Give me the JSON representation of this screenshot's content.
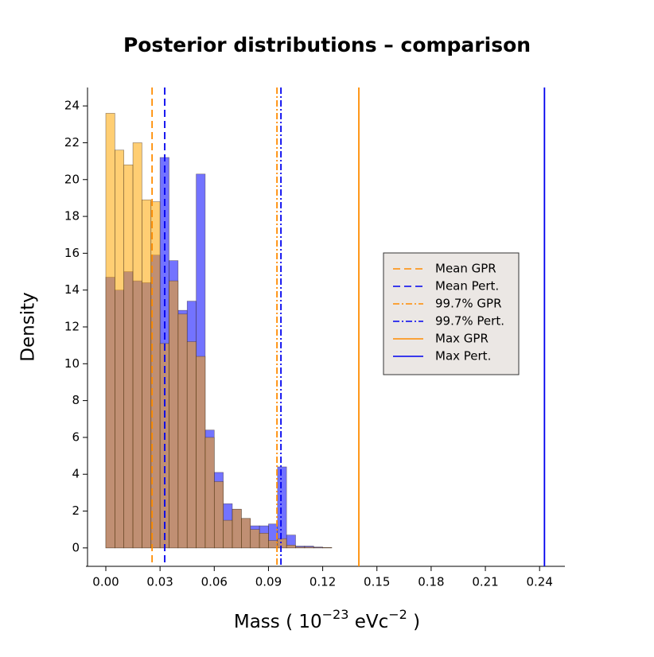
{
  "chart_data": {
    "type": "histogram",
    "title": "Posterior distributions – comparison",
    "ylabel": "Density",
    "xlabel_parts": [
      "Mass ( 10",
      "−23",
      " eVc",
      "−2",
      " )"
    ],
    "bins": [
      0,
      0.005,
      0.01,
      0.015,
      0.02,
      0.025,
      0.03,
      0.035,
      0.04,
      0.045,
      0.05,
      0.055,
      0.06,
      0.065,
      0.07,
      0.075,
      0.08,
      0.085,
      0.09,
      0.095,
      0.1,
      0.105,
      0.11,
      0.115,
      0.12,
      0.125
    ],
    "series": [
      {
        "name": "Pert.",
        "color": "#0000ff",
        "values": [
          14.7,
          14.0,
          15.0,
          14.5,
          14.4,
          15.9,
          21.2,
          15.6,
          12.9,
          13.4,
          20.3,
          6.4,
          4.1,
          2.4,
          2.1,
          1.6,
          1.2,
          1.2,
          1.3,
          4.4,
          0.7,
          0.1,
          0.1,
          0.05,
          0.02
        ]
      },
      {
        "name": "GPR",
        "color": "#ffa500",
        "values": [
          23.6,
          21.6,
          20.8,
          22.0,
          18.9,
          18.8,
          11.1,
          14.5,
          12.7,
          11.2,
          10.4,
          6.0,
          3.6,
          1.5,
          2.1,
          1.6,
          1.0,
          0.8,
          0.4,
          0.5,
          0.15,
          0.05,
          0.05,
          0.02,
          0.02
        ]
      }
    ],
    "lines": [
      {
        "name": "Mean GPR",
        "color": "#ff8c00",
        "style": "dashed",
        "x": 0.0256
      },
      {
        "name": "Mean Pert.",
        "color": "#0000ee",
        "style": "dashed",
        "x": 0.0326
      },
      {
        "name": "99.7% GPR",
        "color": "#ff8c00",
        "style": "dashdot",
        "x": 0.0947
      },
      {
        "name": "99.7% Pert.",
        "color": "#0000ee",
        "style": "dashdot",
        "x": 0.0969
      },
      {
        "name": "Max GPR",
        "color": "#ff8c00",
        "style": "solid",
        "x": 0.14
      },
      {
        "name": "Max Pert.",
        "color": "#0000ee",
        "style": "solid",
        "x": 0.2427
      }
    ],
    "xlim": [
      -0.011,
      0.254
    ],
    "ylim": [
      -1,
      25
    ],
    "xticks": [
      {
        "value": 0,
        "label": "0.00"
      },
      0.03,
      0.06,
      0.09,
      0.12,
      0.15,
      0.18,
      0.21,
      0.24
    ],
    "yticks": [
      0,
      2,
      4,
      6,
      8,
      10,
      12,
      14,
      16,
      18,
      20,
      22,
      24
    ],
    "legend": "center-right"
  }
}
